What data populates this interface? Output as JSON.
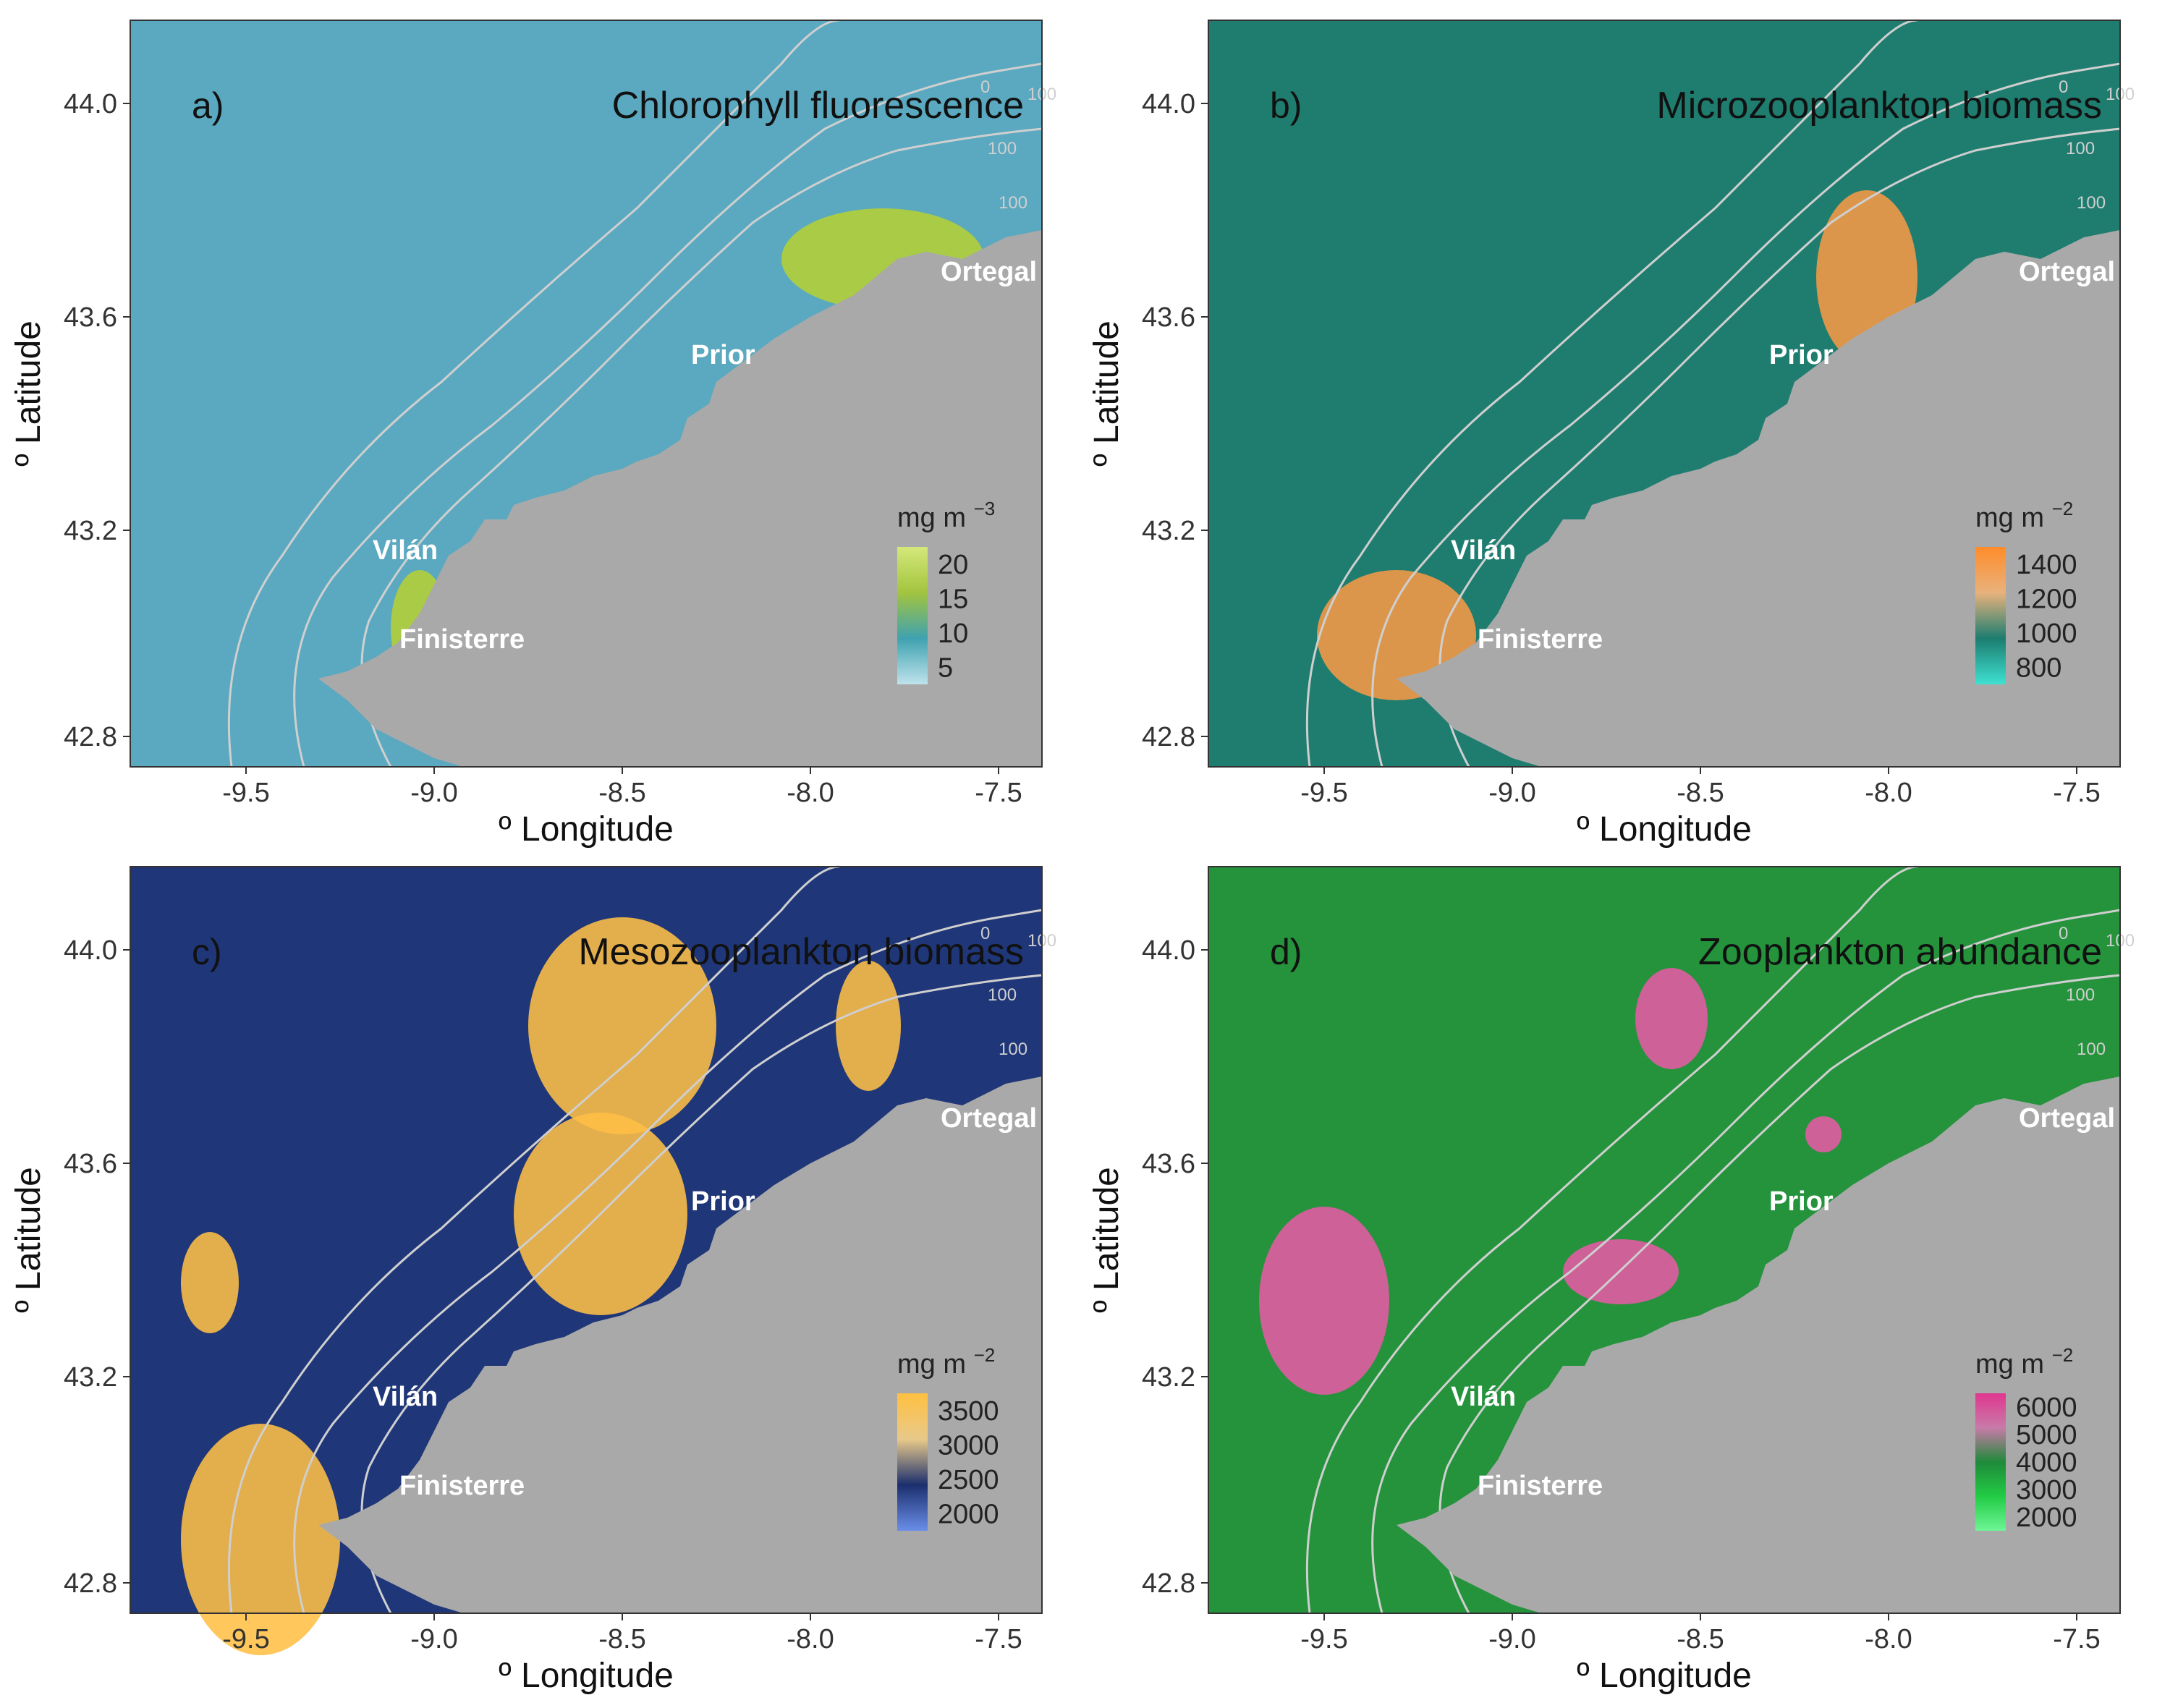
{
  "panels": [
    {
      "tag": "a)",
      "title": "Chlorophyll fluorescence",
      "legend_title_base": "mg m",
      "legend_title_exp": "−3",
      "legend_ticks": [
        "20",
        "15",
        "10",
        "5"
      ],
      "legend_colors": [
        "#d5e87a",
        "#a2c43f",
        "#3fa2b0",
        "#bfe3ec"
      ],
      "ocean_color": "#5aa9c0",
      "highlight_color": "#b5cf34",
      "y_label": "º Latitude",
      "x_label": "º Longitude"
    },
    {
      "tag": "b)",
      "title": "Microzooplankton biomass",
      "legend_title_base": "mg m",
      "legend_title_exp": "−2",
      "legend_ticks": [
        "1400",
        "1200",
        "1000",
        "800"
      ],
      "legend_colors": [
        "#ff8c2a",
        "#e8b27c",
        "#1c7d70",
        "#3ee1d1"
      ],
      "ocean_color": "#1f7d70",
      "highlight_color": "#f79a45",
      "y_label": "º Latitude",
      "x_label": "º Longitude"
    },
    {
      "tag": "c)",
      "title": "Mesozooplankton biomass",
      "legend_title_base": "mg m",
      "legend_title_exp": "−2",
      "legend_ticks": [
        "3500",
        "3000",
        "2500",
        "2000"
      ],
      "legend_colors": [
        "#ffc040",
        "#e8c98a",
        "#1b2f6e",
        "#6a8ee8"
      ],
      "ocean_color": "#1f3678",
      "highlight_color": "#ffbf45",
      "y_label": "º Latitude",
      "x_label": "º Longitude"
    },
    {
      "tag": "d)",
      "title": "Zooplankton abundance",
      "legend_title_base": "mg m",
      "legend_title_exp": "−2",
      "legend_ticks": [
        "6000",
        "5000",
        "4000",
        "3000",
        "2000"
      ],
      "legend_colors": [
        "#e0368f",
        "#c87aa8",
        "#1f8a3a",
        "#22cc44",
        "#6ef596"
      ],
      "ocean_color": "#24933c",
      "highlight_color": "#e55aa5",
      "y_label": "º Latitude",
      "x_label": "º Longitude"
    }
  ],
  "lon_ticks": [
    "-9.5",
    "-9.0",
    "-8.5",
    "-8.0",
    "-7.5"
  ],
  "lat_ticks": [
    "44.0",
    "43.6",
    "43.2",
    "42.8"
  ],
  "place_labels": [
    "Ortegal",
    "Prior",
    "Vilán",
    "Finisterre"
  ],
  "contour_labels": [
    "0",
    "100",
    "100",
    "100"
  ],
  "land_color": "#a9a9a9",
  "contour_color": "#cfcfcf"
}
